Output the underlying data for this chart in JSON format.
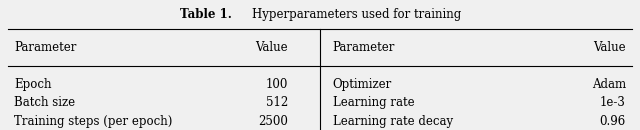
{
  "title_bold": "Table 1.",
  "title_normal": "    Hyperparameters used for training",
  "col_headers": [
    "Parameter",
    "Value",
    "Parameter",
    "Value"
  ],
  "rows": [
    [
      "Epoch",
      "100",
      "Optimizer",
      "Adam"
    ],
    [
      "Batch size",
      "512",
      "Learning rate",
      "1e-3"
    ],
    [
      "Training steps (per epoch)",
      "2500",
      "Learning rate decay",
      "0.96"
    ]
  ],
  "bg_color": "#f0f0f0",
  "font_size": 8.5,
  "title_font_size": 8.5
}
